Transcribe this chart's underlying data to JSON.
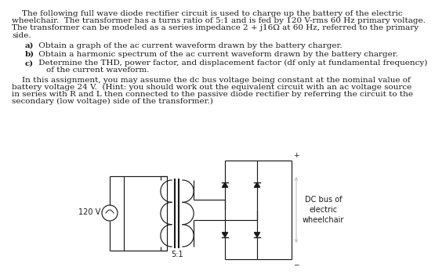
{
  "bg_color": "#ffffff",
  "text_color": "#1a1a1a",
  "para1": "    The following full wave diode rectifier circuit is used to charge up the battery of the electric\nwheelchair.  The transformer has a turns ratio of 5:1 and is fed by 120 V-rms 60 Hz primary voltage.\nThe transformer can be modeled as a series impedance 2 + j16Ω at 60 Hz, referred to the primary\nside.",
  "item_a": "    a)  Obtain a graph of the ac current waveform drawn by the battery charger.",
  "item_b": "    b)  Obtain a harmonic spectrum of the ac current waveform drawn by the battery charger.",
  "item_c1": "    c)  Determine the THD, power factor, and displacement factor (df only at fundamental frequency)",
  "item_c2": "        of the current waveform.",
  "para2_1": "    In this assignment, you may assume the dc bus voltage being constant at the nominal value of",
  "para2_2": "battery voltage 24 V.  (Hint: you should work out the equivalent circuit with an ac voltage source",
  "para2_3": "in series with R and L then connected to the passive diode rectifier by referring the circuit to the",
  "para2_4": "secondary (low voltage) side of the transformer.)",
  "label_120v": "120 V",
  "label_ratio": "5:1",
  "label_dcbus": "DC bus of\nelectric\nwheelchair",
  "body_fs": 7.5,
  "circ_fs": 7.0
}
